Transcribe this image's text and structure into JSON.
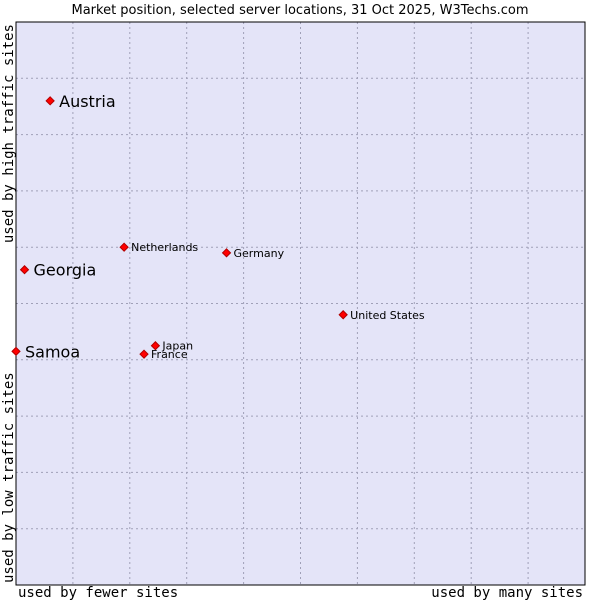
{
  "chart_data": {
    "type": "scatter",
    "title": "Market position, selected server locations, 31 Oct 2025, W3Techs.com",
    "xlabel_left": "used by fewer sites",
    "xlabel_right": "used by many sites",
    "ylabel_bottom": "used by low traffic sites",
    "ylabel_top": "used by high traffic sites",
    "xlim": [
      0,
      10
    ],
    "ylim": [
      0,
      10
    ],
    "grid": true,
    "colors": {
      "plot_background": "#e4e4f8",
      "grid": "#a0a0b8",
      "marker": "#ff0000",
      "marker_edge": "#b00000",
      "frame": "#000000"
    },
    "points": [
      {
        "label": "Austria",
        "x": 0.6,
        "y": 8.6,
        "emphasis": true
      },
      {
        "label": "Netherlands",
        "x": 1.9,
        "y": 6.0,
        "emphasis": false
      },
      {
        "label": "Germany",
        "x": 3.7,
        "y": 5.9,
        "emphasis": false
      },
      {
        "label": "Georgia",
        "x": 0.15,
        "y": 5.6,
        "emphasis": true
      },
      {
        "label": "United States",
        "x": 5.75,
        "y": 4.8,
        "emphasis": false
      },
      {
        "label": "Japan",
        "x": 2.45,
        "y": 4.25,
        "emphasis": false
      },
      {
        "label": "France",
        "x": 2.25,
        "y": 4.1,
        "emphasis": false
      },
      {
        "label": "Samoa",
        "x": 0.0,
        "y": 4.15,
        "emphasis": true
      }
    ]
  }
}
